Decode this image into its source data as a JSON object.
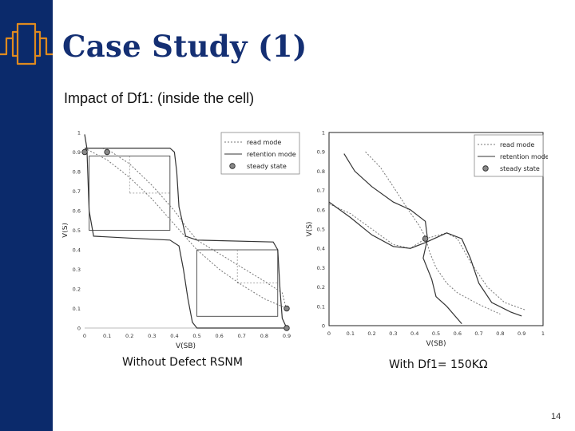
{
  "slide": {
    "title": "Case Study (1)",
    "subtitle": "Impact of Df1: (inside the cell)",
    "page_number": "14",
    "colors": {
      "sidebar": "#0b2a6b",
      "accent": "#e08a1e",
      "title": "#142f73"
    }
  },
  "chart_data": [
    {
      "type": "line",
      "caption": "Without Defect RSNM",
      "xlabel": "V(SB)",
      "ylabel": "V(S)",
      "xlim": [
        0,
        0.9
      ],
      "ylim": [
        0,
        1
      ],
      "x_ticks": [
        "0",
        "0.1",
        "0.2",
        "0.3",
        "0.4",
        "0.5",
        "0.6",
        "0.7",
        "0.8",
        "0.9"
      ],
      "y_ticks": [
        "0",
        "0.1",
        "0.2",
        "0.3",
        "0.4",
        "0.5",
        "0.6",
        "0.7",
        "0.8",
        "0.9",
        "1"
      ],
      "legend": [
        "read mode",
        "retention mode",
        "steady state"
      ],
      "legend_position": "top-right",
      "series": [
        {
          "name": "read mode",
          "style": "dotted",
          "points": [
            [
              0,
              0.92
            ],
            [
              0.1,
              0.86
            ],
            [
              0.2,
              0.77
            ],
            [
              0.3,
              0.66
            ],
            [
              0.4,
              0.53
            ],
            [
              0.5,
              0.4
            ],
            [
              0.6,
              0.3
            ],
            [
              0.7,
              0.22
            ],
            [
              0.8,
              0.15
            ],
            [
              0.9,
              0.1
            ]
          ]
        },
        {
          "name": "read mode",
          "style": "dotted",
          "points": [
            [
              0.08,
              0.92
            ],
            [
              0.12,
              0.9
            ],
            [
              0.2,
              0.84
            ],
            [
              0.3,
              0.73
            ],
            [
              0.4,
              0.6
            ],
            [
              0.45,
              0.52
            ],
            [
              0.5,
              0.45
            ],
            [
              0.6,
              0.38
            ],
            [
              0.7,
              0.31
            ],
            [
              0.8,
              0.24
            ],
            [
              0.88,
              0.18
            ],
            [
              0.9,
              0.09
            ]
          ]
        },
        {
          "name": "retention mode",
          "style": "solid",
          "points": [
            [
              0,
              0.99
            ],
            [
              0.01,
              0.92
            ],
            [
              0.02,
              0.6
            ],
            [
              0.04,
              0.47
            ],
            [
              0.2,
              0.46
            ],
            [
              0.38,
              0.45
            ],
            [
              0.42,
              0.42
            ],
            [
              0.44,
              0.3
            ],
            [
              0.46,
              0.15
            ],
            [
              0.48,
              0.03
            ],
            [
              0.5,
              0
            ],
            [
              0.9,
              0
            ]
          ]
        },
        {
          "name": "retention mode",
          "style": "solid",
          "points": [
            [
              0,
              0.92
            ],
            [
              0.38,
              0.92
            ],
            [
              0.4,
              0.9
            ],
            [
              0.41,
              0.8
            ],
            [
              0.42,
              0.62
            ],
            [
              0.45,
              0.47
            ],
            [
              0.5,
              0.45
            ],
            [
              0.84,
              0.44
            ],
            [
              0.86,
              0.4
            ],
            [
              0.87,
              0.2
            ],
            [
              0.88,
              0.05
            ],
            [
              0.9,
              0
            ]
          ]
        }
      ],
      "steady_state": [
        [
          0,
          0.9
        ],
        [
          0.1,
          0.9
        ],
        [
          0.9,
          0.1
        ],
        [
          0.9,
          0
        ]
      ],
      "noise_margin_boxes": [
        {
          "x": [
            0.02,
            0.38
          ],
          "y": [
            0.5,
            0.88
          ]
        },
        {
          "x": [
            0.5,
            0.86
          ],
          "y": [
            0.06,
            0.4
          ]
        }
      ]
    },
    {
      "type": "line",
      "caption": "With Df1= 150KΩ",
      "xlabel": "V(SB)",
      "ylabel": "V(S)",
      "xlim": [
        0,
        1
      ],
      "ylim": [
        0,
        1
      ],
      "x_ticks": [
        "0",
        "0.1",
        "0.2",
        "0.3",
        "0.4",
        "0.5",
        "0.6",
        "0.7",
        "0.8",
        "0.9",
        "1"
      ],
      "y_ticks": [
        "0",
        "0.1",
        "0.2",
        "0.3",
        "0.4",
        "0.5",
        "0.6",
        "0.7",
        "0.8",
        "0.9",
        "1"
      ],
      "legend": [
        "read mode",
        "retention mode",
        "steady state"
      ],
      "legend_position": "top-right",
      "series": [
        {
          "name": "read mode",
          "style": "dotted",
          "points": [
            [
              0.17,
              0.9
            ],
            [
              0.24,
              0.82
            ],
            [
              0.3,
              0.72
            ],
            [
              0.37,
              0.6
            ],
            [
              0.42,
              0.52
            ],
            [
              0.45,
              0.46
            ],
            [
              0.47,
              0.38
            ],
            [
              0.5,
              0.3
            ],
            [
              0.55,
              0.22
            ],
            [
              0.6,
              0.17
            ],
            [
              0.7,
              0.11
            ],
            [
              0.8,
              0.06
            ]
          ]
        },
        {
          "name": "read mode",
          "style": "dotted",
          "points": [
            [
              0,
              0.63
            ],
            [
              0.1,
              0.58
            ],
            [
              0.2,
              0.5
            ],
            [
              0.3,
              0.42
            ],
            [
              0.38,
              0.4
            ],
            [
              0.45,
              0.45
            ],
            [
              0.55,
              0.48
            ],
            [
              0.6,
              0.45
            ],
            [
              0.66,
              0.33
            ],
            [
              0.74,
              0.2
            ],
            [
              0.82,
              0.12
            ],
            [
              0.92,
              0.08
            ]
          ]
        },
        {
          "name": "retention mode",
          "style": "solid",
          "points": [
            [
              0.07,
              0.89
            ],
            [
              0.12,
              0.8
            ],
            [
              0.2,
              0.72
            ],
            [
              0.3,
              0.64
            ],
            [
              0.38,
              0.6
            ],
            [
              0.45,
              0.54
            ],
            [
              0.46,
              0.45
            ],
            [
              0.44,
              0.35
            ],
            [
              0.48,
              0.24
            ],
            [
              0.5,
              0.15
            ],
            [
              0.55,
              0.1
            ],
            [
              0.62,
              0.01
            ]
          ]
        },
        {
          "name": "retention mode",
          "style": "solid",
          "points": [
            [
              0,
              0.64
            ],
            [
              0.1,
              0.56
            ],
            [
              0.2,
              0.47
            ],
            [
              0.3,
              0.41
            ],
            [
              0.38,
              0.4
            ],
            [
              0.45,
              0.43
            ],
            [
              0.55,
              0.48
            ],
            [
              0.62,
              0.45
            ],
            [
              0.66,
              0.35
            ],
            [
              0.7,
              0.22
            ],
            [
              0.76,
              0.12
            ],
            [
              0.85,
              0.07
            ],
            [
              0.9,
              0.05
            ]
          ]
        }
      ],
      "steady_state": [
        [
          0.45,
          0.45
        ]
      ]
    }
  ]
}
